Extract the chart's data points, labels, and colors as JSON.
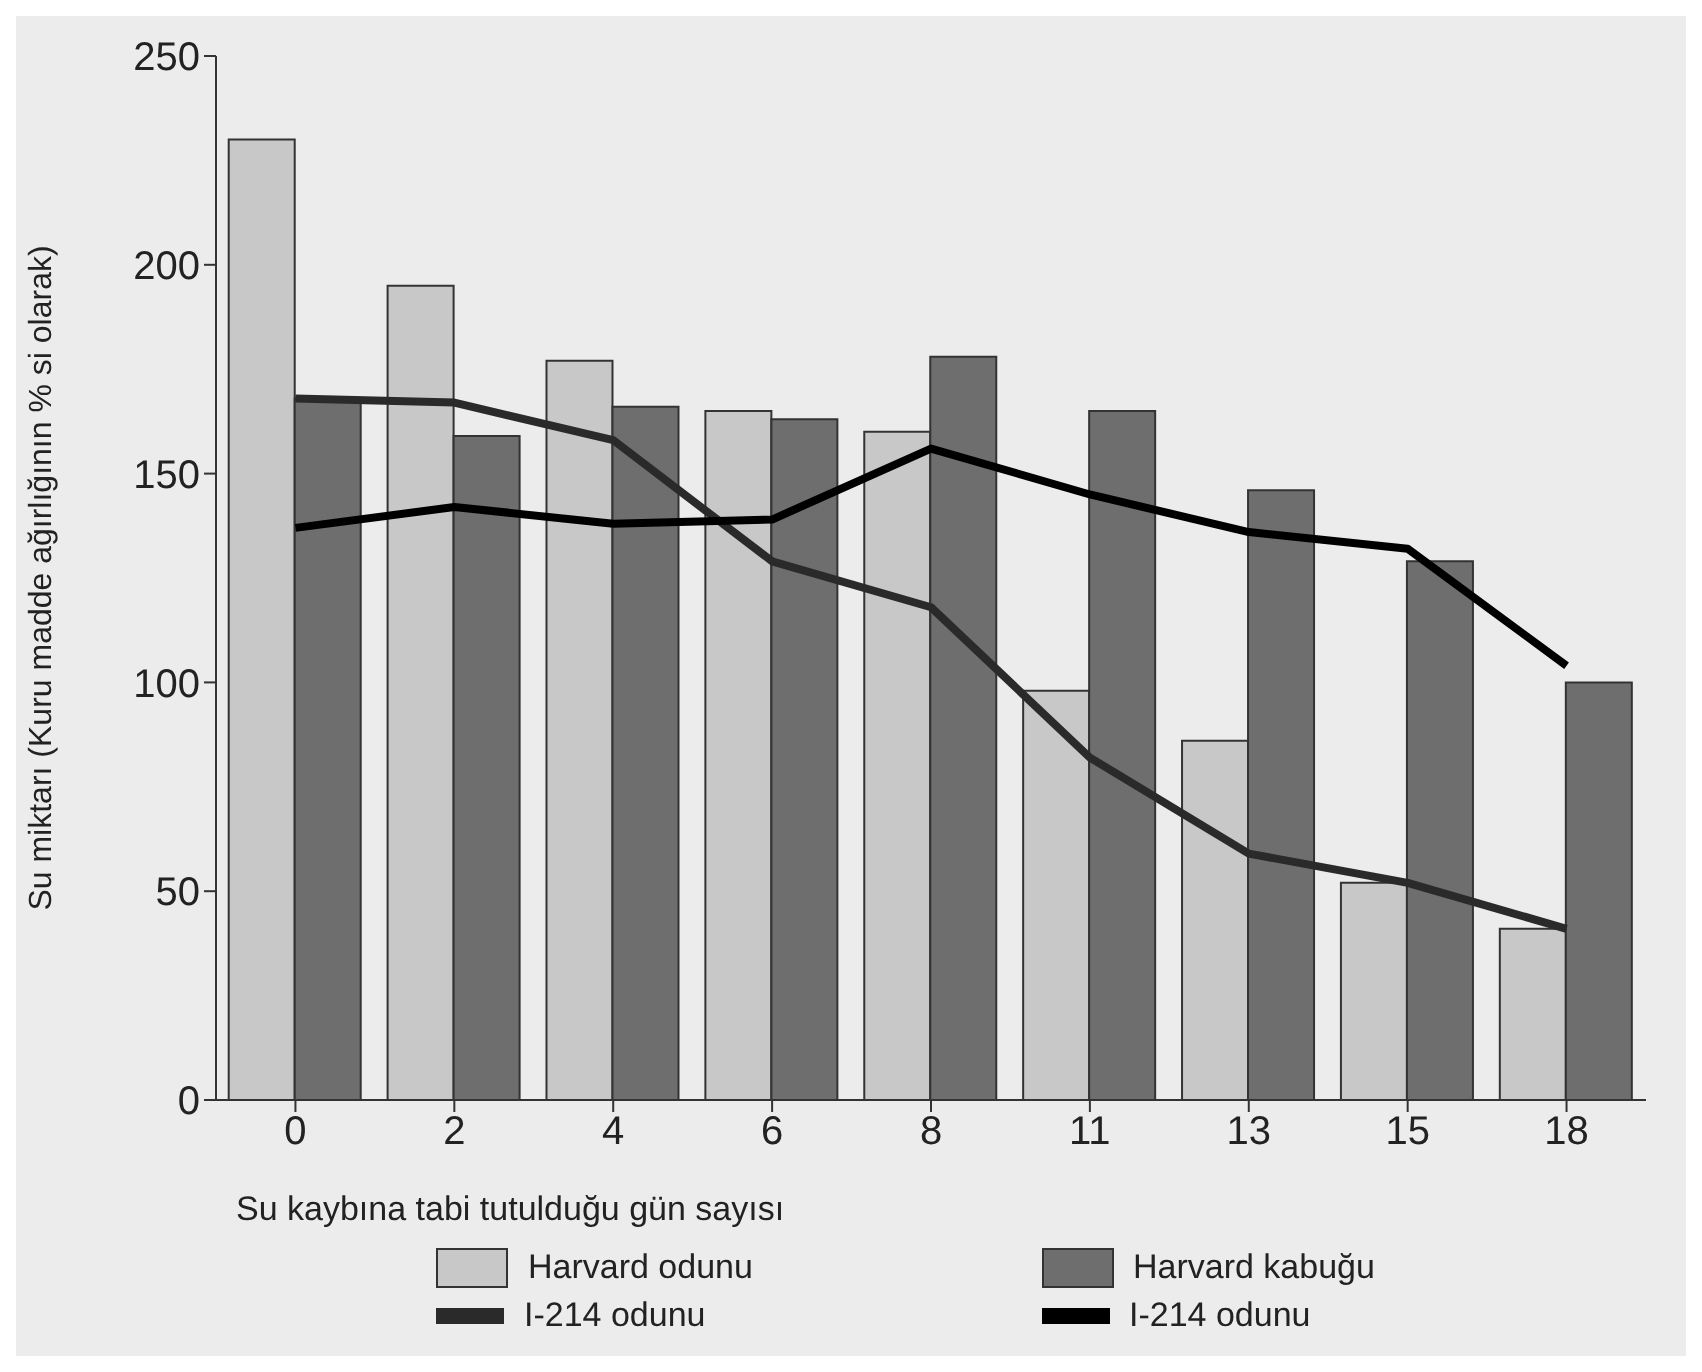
{
  "chart_data": {
    "type": "bar",
    "xlabel": "Su kaybına tabi tutulduğu gün sayısı",
    "ylabel": "Su miktarı (Kuru madde ağırlığının % si olarak)",
    "categories": [
      "0",
      "2",
      "4",
      "6",
      "8",
      "11",
      "13",
      "15",
      "18"
    ],
    "series": [
      {
        "name": "Harvard odunu",
        "color": "#c8c8c8",
        "values": [
          230,
          195,
          177,
          165,
          160,
          98,
          86,
          52,
          41
        ]
      },
      {
        "name": "Harvard kabuğu",
        "color": "#6e6e6e",
        "values": [
          168,
          159,
          166,
          163,
          178,
          165,
          146,
          129,
          100
        ]
      },
      {
        "name": "I-214 odunu",
        "type": "line",
        "color": "#2a2a2a",
        "values": [
          168,
          167,
          158,
          129,
          118,
          82,
          59,
          52,
          41
        ]
      },
      {
        "name": "I-214 odunu",
        "type": "line",
        "color": "#000000",
        "values": [
          137,
          142,
          138,
          139,
          156,
          145,
          136,
          132,
          104
        ]
      }
    ],
    "ylim": [
      0,
      250
    ],
    "yticks": [
      0,
      50,
      100,
      150,
      200,
      250
    ],
    "legend": "bottom",
    "marker": "none",
    "line_style": "solid"
  }
}
